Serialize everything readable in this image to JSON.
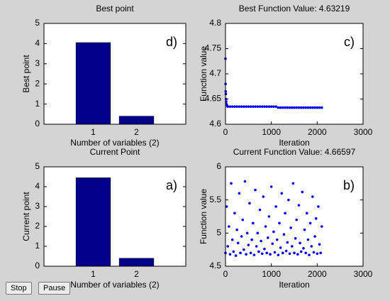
{
  "chart_data": [
    {
      "type": "bar",
      "title": "Best point",
      "xlabel": "Number of variables (2)",
      "ylabel": "Best point",
      "annotation": "d)",
      "categories": [
        "1",
        "2"
      ],
      "values": [
        4.05,
        0.4
      ],
      "color": "#00008b",
      "ylim": [
        0,
        5
      ],
      "yticks": [
        0,
        1,
        2,
        3,
        4,
        5
      ]
    },
    {
      "type": "scatter",
      "title": "Best Function Value: 4.63219",
      "xlabel": "Iteration",
      "ylabel": "Function value",
      "annotation": "c)",
      "color": "#0000ff",
      "xlim": [
        0,
        3000
      ],
      "xticks": [
        0,
        1000,
        2000,
        3000
      ],
      "ylim": [
        4.6,
        4.8
      ],
      "yticks": [
        4.6,
        4.65,
        4.7,
        4.75,
        4.8
      ],
      "x": [
        0,
        2,
        5,
        8,
        12,
        16,
        20,
        30,
        40,
        50,
        100,
        150,
        200,
        250,
        300,
        350,
        400,
        450,
        500,
        550,
        600,
        650,
        700,
        750,
        800,
        850,
        900,
        950,
        1000,
        1050,
        1100,
        1150,
        1200,
        1250,
        1300,
        1350,
        1400,
        1450,
        1500,
        1550,
        1600,
        1650,
        1700,
        1750,
        1800,
        1850,
        1900,
        1950,
        2000,
        2050,
        2100
      ],
      "values": [
        4.73,
        4.68,
        4.665,
        4.66,
        4.65,
        4.645,
        4.64,
        4.638,
        4.636,
        4.635,
        4.635,
        4.635,
        4.635,
        4.635,
        4.635,
        4.635,
        4.635,
        4.635,
        4.635,
        4.635,
        4.635,
        4.635,
        4.635,
        4.635,
        4.635,
        4.635,
        4.635,
        4.635,
        4.635,
        4.635,
        4.635,
        4.633,
        4.633,
        4.633,
        4.633,
        4.633,
        4.633,
        4.633,
        4.633,
        4.633,
        4.633,
        4.633,
        4.633,
        4.633,
        4.633,
        4.633,
        4.633,
        4.633,
        4.633,
        4.633,
        4.633
      ]
    },
    {
      "type": "bar",
      "title": "Current Point",
      "xlabel": "Number of variables (2)",
      "ylabel": "Current point",
      "annotation": "a)",
      "categories": [
        "1",
        "2"
      ],
      "values": [
        4.45,
        0.4
      ],
      "color": "#00008b",
      "ylim": [
        0,
        5
      ],
      "yticks": [
        0,
        1,
        2,
        3,
        4,
        5
      ]
    },
    {
      "type": "scatter",
      "title": "Current Function Value: 4.66597",
      "xlabel": "Iteration",
      "ylabel": "Function value",
      "annotation": "b)",
      "color": "#0000ff",
      "xlim": [
        0,
        3000
      ],
      "xticks": [
        0,
        1000,
        2000,
        3000
      ],
      "ylim": [
        4.5,
        6
      ],
      "yticks": [
        4.5,
        5,
        5.5,
        6
      ],
      "x": [
        0,
        25,
        50,
        75,
        100,
        125,
        150,
        175,
        200,
        225,
        250,
        275,
        300,
        325,
        350,
        375,
        400,
        425,
        450,
        475,
        500,
        525,
        550,
        575,
        600,
        625,
        650,
        675,
        700,
        725,
        750,
        775,
        800,
        825,
        850,
        875,
        900,
        925,
        950,
        975,
        1000,
        1025,
        1050,
        1075,
        1100,
        1125,
        1150,
        1175,
        1200,
        1225,
        1250,
        1275,
        1300,
        1325,
        1350,
        1375,
        1400,
        1425,
        1450,
        1475,
        1500,
        1525,
        1550,
        1575,
        1600,
        1625,
        1650,
        1675,
        1700,
        1725,
        1750,
        1775,
        1800,
        1825,
        1850,
        1875,
        1900,
        1925,
        1950,
        1975,
        2000,
        2025,
        2050,
        2075,
        2100
      ],
      "values": [
        4.7,
        5.4,
        4.8,
        5.1,
        4.68,
        5.75,
        4.9,
        4.72,
        5.3,
        4.66,
        5.05,
        4.85,
        5.6,
        4.7,
        4.95,
        5.2,
        4.75,
        5.78,
        4.68,
        5.0,
        4.82,
        5.45,
        4.7,
        4.9,
        5.15,
        4.67,
        5.65,
        4.8,
        5.0,
        4.72,
        5.35,
        4.88,
        4.69,
        5.55,
        4.76,
        5.1,
        4.7,
        4.93,
        5.25,
        4.68,
        5.7,
        4.84,
        5.02,
        4.71,
        5.4,
        4.9,
        4.67,
        5.15,
        4.78,
        5.6,
        4.7,
        4.98,
        5.3,
        4.73,
        4.86,
        5.5,
        4.69,
        5.08,
        4.8,
        5.75,
        4.7,
        4.92,
        5.2,
        4.68,
        5.42,
        4.85,
        4.72,
        5.62,
        4.77,
        5.05,
        4.7,
        5.3,
        4.9,
        4.67,
        5.15,
        4.8,
        5.55,
        4.71,
        4.95,
        5.22,
        4.69,
        5.4,
        4.83,
        4.7,
        5.1
      ]
    }
  ],
  "buttons": [
    "Stop",
    "Pause"
  ]
}
